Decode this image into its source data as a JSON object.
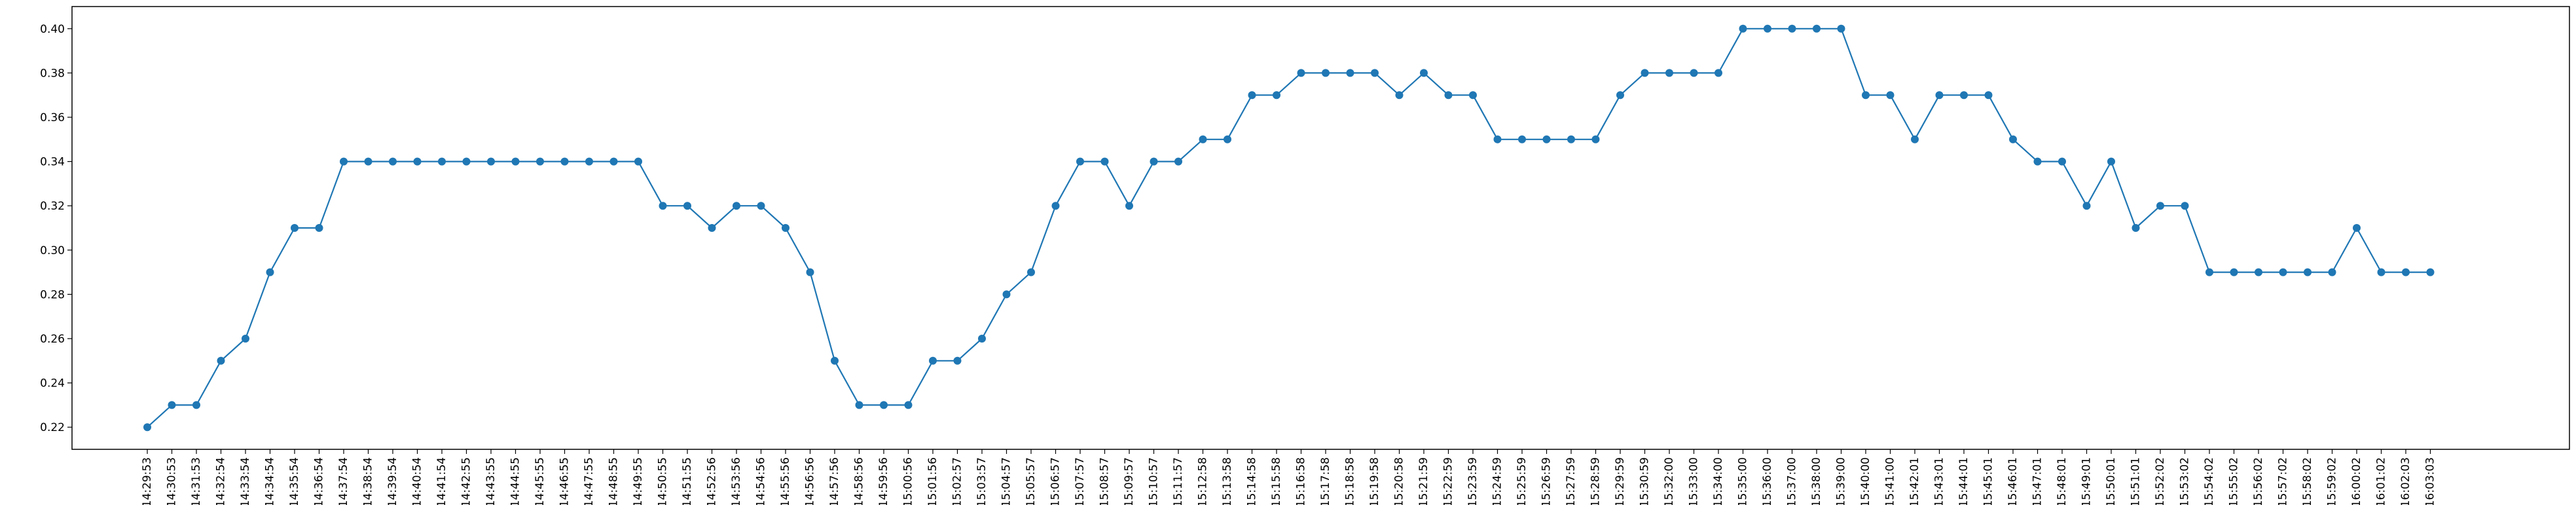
{
  "chart_data": {
    "type": "line",
    "title": "",
    "xlabel": "",
    "ylabel": "",
    "ylim": [
      0.21,
      0.41
    ],
    "yticks": [
      "0.22",
      "0.24",
      "0.26",
      "0.28",
      "0.30",
      "0.32",
      "0.34",
      "0.36",
      "0.38",
      "0.40"
    ],
    "grid": false,
    "legend": "none",
    "colors": {
      "line": "#1f77b4",
      "marker": "#1f77b4"
    },
    "categories": [
      "14:29:53",
      "14:30:53",
      "14:31:53",
      "14:32:54",
      "14:33:54",
      "14:34:54",
      "14:35:54",
      "14:36:54",
      "14:37:54",
      "14:38:54",
      "14:39:54",
      "14:40:54",
      "14:41:54",
      "14:42:55",
      "14:43:55",
      "14:44:55",
      "14:45:55",
      "14:46:55",
      "14:47:55",
      "14:48:55",
      "14:49:55",
      "14:50:55",
      "14:51:55",
      "14:52:56",
      "14:53:56",
      "14:54:56",
      "14:55:56",
      "14:56:56",
      "14:57:56",
      "14:58:56",
      "14:59:56",
      "15:00:56",
      "15:01:56",
      "15:02:57",
      "15:03:57",
      "15:04:57",
      "15:05:57",
      "15:06:57",
      "15:07:57",
      "15:08:57",
      "15:09:57",
      "15:10:57",
      "15:11:57",
      "15:12:58",
      "15:13:58",
      "15:14:58",
      "15:15:58",
      "15:16:58",
      "15:17:58",
      "15:18:58",
      "15:19:58",
      "15:20:58",
      "15:21:59",
      "15:22:59",
      "15:23:59",
      "15:24:59",
      "15:25:59",
      "15:26:59",
      "15:27:59",
      "15:28:59",
      "15:29:59",
      "15:30:59",
      "15:32:00",
      "15:33:00",
      "15:34:00",
      "15:35:00",
      "15:36:00",
      "15:37:00",
      "15:38:00",
      "15:39:00",
      "15:40:00",
      "15:41:00",
      "15:42:01",
      "15:43:01",
      "15:44:01",
      "15:45:01",
      "15:46:01",
      "15:47:01",
      "15:48:01",
      "15:49:01",
      "15:50:01",
      "15:51:01",
      "15:52:02",
      "15:53:02",
      "15:54:02",
      "15:55:02",
      "15:56:02",
      "15:57:02",
      "15:58:02",
      "15:59:02",
      "16:00:02",
      "16:01:02",
      "16:02:03",
      "16:03:03"
    ],
    "series": [
      {
        "values": [
          0.22,
          0.23,
          0.23,
          0.25,
          0.26,
          0.29,
          0.31,
          0.31,
          0.34,
          0.34,
          0.34,
          0.34,
          0.34,
          0.34,
          0.34,
          0.34,
          0.34,
          0.34,
          0.34,
          0.34,
          0.34,
          0.32,
          0.32,
          0.31,
          0.32,
          0.32,
          0.31,
          0.29,
          0.25,
          0.23,
          0.23,
          0.23,
          0.25,
          0.25,
          0.26,
          0.28,
          0.29,
          0.32,
          0.34,
          0.34,
          0.32,
          0.34,
          0.34,
          0.35,
          0.35,
          0.37,
          0.37,
          0.38,
          0.38,
          0.38,
          0.38,
          0.37,
          0.38,
          0.37,
          0.37,
          0.35,
          0.35,
          0.35,
          0.35,
          0.35,
          0.37,
          0.38,
          0.38,
          0.38,
          0.38,
          0.4,
          0.4,
          0.4,
          0.4,
          0.4,
          0.37,
          0.37,
          0.35,
          0.37,
          0.37,
          0.37,
          0.35,
          0.34,
          0.34,
          0.32,
          0.34,
          0.31,
          0.32,
          0.32,
          0.29,
          0.29,
          0.29,
          0.29,
          0.29,
          0.29,
          0.31,
          0.29,
          0.29,
          0.29
        ]
      }
    ]
  }
}
